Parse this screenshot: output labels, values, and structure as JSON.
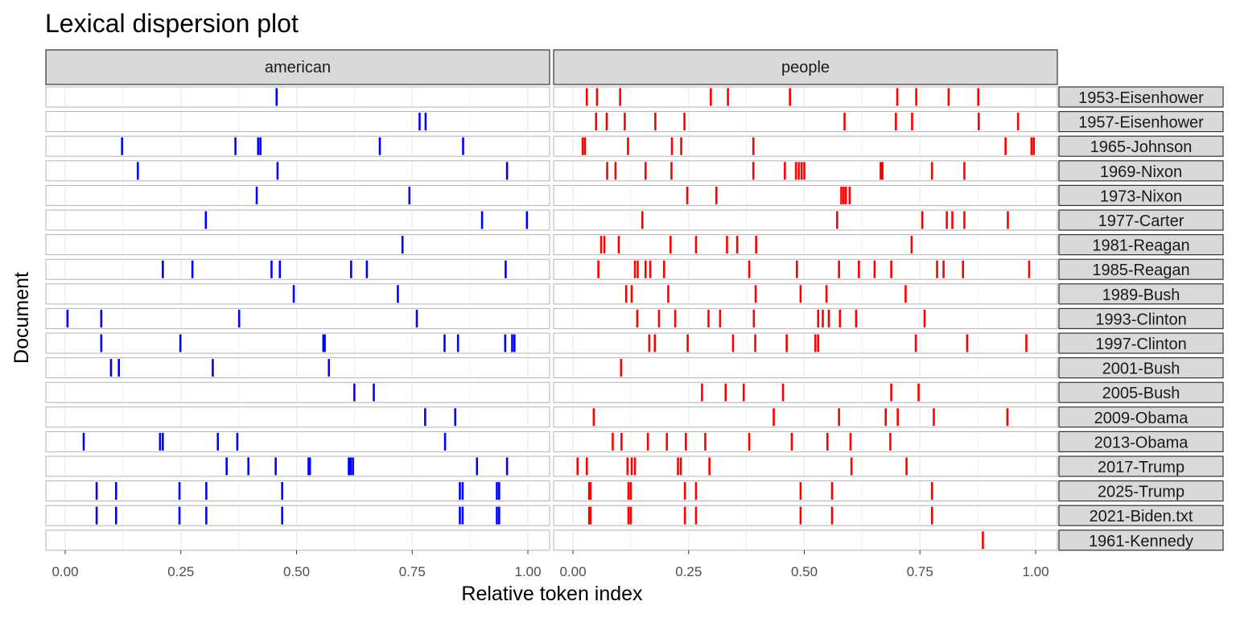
{
  "chart_data": {
    "type": "lexical-dispersion",
    "title": "Lexical dispersion plot",
    "xlabel": "Relative token index",
    "ylabel": "Document",
    "xlim": [
      0,
      1
    ],
    "x_ticks": [
      "0.00",
      "0.25",
      "0.50",
      "0.75",
      "1.00"
    ],
    "grid": true,
    "documents": [
      "1953-Eisenhower",
      "1957-Eisenhower",
      "1965-Johnson",
      "1969-Nixon",
      "1973-Nixon",
      "1977-Carter",
      "1981-Reagan",
      "1985-Reagan",
      "1989-Bush",
      "1993-Clinton",
      "1997-Clinton",
      "2001-Bush",
      "2005-Bush",
      "2009-Obama",
      "2013-Obama",
      "2017-Trump",
      "2025-Trump",
      "2021-Biden.txt",
      "1961-Kennedy"
    ],
    "facets": [
      {
        "keyword": "american",
        "color": "#0000ff",
        "positions": [
          [
            0.457
          ],
          [
            0.766,
            0.779
          ],
          [
            0.123,
            0.368,
            0.417,
            0.422,
            0.68,
            0.86
          ],
          [
            0.157,
            0.459,
            0.955
          ],
          [
            0.414,
            0.744
          ],
          [
            0.304,
            0.901,
            0.998
          ],
          [
            0.729
          ],
          [
            0.211,
            0.275,
            0.446,
            0.464,
            0.618,
            0.652,
            0.952
          ],
          [
            0.494,
            0.719
          ],
          [
            0.005,
            0.078,
            0.376,
            0.76
          ],
          [
            0.078,
            0.249,
            0.558,
            0.561,
            0.82,
            0.849,
            0.951,
            0.966,
            0.971
          ],
          [
            0.099,
            0.116,
            0.319,
            0.57
          ],
          [
            0.625,
            0.667
          ],
          [
            0.778,
            0.843
          ],
          [
            0.04,
            0.205,
            0.211,
            0.33,
            0.372,
            0.821
          ],
          [
            0.349,
            0.396,
            0.455,
            0.526,
            0.529,
            0.613,
            0.617,
            0.622,
            0.89,
            0.955
          ],
          [
            0.068,
            0.11,
            0.247,
            0.305,
            0.469,
            0.853,
            0.859,
            0.933,
            0.938
          ],
          [
            0.068,
            0.11,
            0.247,
            0.305,
            0.469,
            0.853,
            0.859,
            0.933,
            0.938
          ],
          []
        ]
      },
      {
        "keyword": "people",
        "color": "#ff0000",
        "positions": [
          [
            0.03,
            0.052,
            0.102,
            0.298,
            0.335,
            0.469,
            0.701,
            0.742,
            0.812,
            0.876
          ],
          [
            0.05,
            0.073,
            0.112,
            0.178,
            0.241,
            0.587,
            0.698,
            0.733,
            0.877,
            0.962
          ],
          [
            0.021,
            0.026,
            0.119,
            0.214,
            0.234,
            0.39,
            0.935,
            0.991,
            0.996
          ],
          [
            0.074,
            0.092,
            0.157,
            0.213,
            0.39,
            0.458,
            0.482,
            0.488,
            0.494,
            0.5,
            0.665,
            0.669,
            0.776,
            0.846
          ],
          [
            0.247,
            0.31,
            0.58,
            0.585,
            0.59,
            0.598
          ],
          [
            0.15,
            0.571,
            0.755,
            0.808,
            0.82,
            0.846,
            0.94
          ],
          [
            0.061,
            0.068,
            0.099,
            0.211,
            0.266,
            0.333,
            0.355,
            0.396,
            0.732
          ],
          [
            0.055,
            0.134,
            0.14,
            0.157,
            0.167,
            0.197,
            0.381,
            0.484,
            0.575,
            0.618,
            0.652,
            0.688,
            0.787,
            0.801,
            0.843,
            0.986
          ],
          [
            0.115,
            0.127,
            0.206,
            0.395,
            0.492,
            0.548,
            0.719
          ],
          [
            0.139,
            0.186,
            0.221,
            0.293,
            0.318,
            0.391,
            0.53,
            0.54,
            0.553,
            0.577,
            0.612,
            0.76
          ],
          [
            0.165,
            0.177,
            0.248,
            0.346,
            0.394,
            0.462,
            0.524,
            0.53,
            0.741,
            0.852,
            0.98
          ],
          [
            0.104
          ],
          [
            0.279,
            0.33,
            0.369,
            0.454,
            0.688,
            0.747
          ],
          [
            0.045,
            0.434,
            0.575,
            0.676,
            0.702,
            0.78,
            0.939
          ],
          [
            0.086,
            0.105,
            0.162,
            0.203,
            0.244,
            0.286,
            0.381,
            0.473,
            0.55,
            0.6,
            0.686
          ],
          [
            0.01,
            0.03,
            0.118,
            0.127,
            0.134,
            0.227,
            0.233,
            0.295,
            0.602,
            0.721
          ],
          [
            0.035,
            0.038,
            0.12,
            0.125,
            0.242,
            0.266,
            0.492,
            0.56,
            0.776
          ],
          [
            0.035,
            0.038,
            0.12,
            0.125,
            0.242,
            0.266,
            0.492,
            0.56,
            0.776
          ],
          [
            0.886
          ]
        ]
      }
    ]
  }
}
